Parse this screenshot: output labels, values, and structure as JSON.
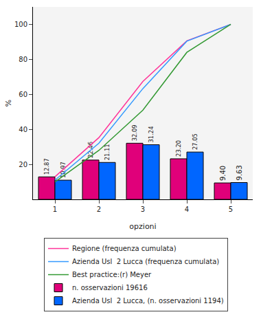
{
  "chart_data": {
    "type": "bar",
    "categories": [
      "1",
      "2",
      "3",
      "4",
      "5"
    ],
    "x_label": "opzioni",
    "y_label": "%",
    "ylim": [
      0,
      110
    ],
    "yticks": [
      20,
      40,
      60,
      80,
      100
    ],
    "grid": false,
    "data_labels": true,
    "legend": "bottom",
    "series": [
      {
        "name": "Regione (frequenza cumulata)",
        "type": "line",
        "color": "#ff3399",
        "values": [
          12.9,
          35.3,
          67.4,
          90.6,
          100
        ]
      },
      {
        "name": "Azienda Usl  2 Lucca (frequenza cumulata)",
        "type": "line",
        "color": "#3399ff",
        "values": [
          11,
          32.1,
          63.3,
          90.4,
          100
        ]
      },
      {
        "name": "Best practice:(r) Meyer",
        "type": "line",
        "color": "#339933",
        "values": [
          10,
          28,
          51,
          84,
          100
        ]
      },
      {
        "name": "n. osservazioni 19616",
        "type": "bar",
        "color": "#e0007a",
        "values": [
          12.87,
          22.46,
          32.09,
          23.2,
          9.4
        ],
        "value_labels": [
          "12.87",
          "22.46",
          "32.09",
          "23.20",
          "9.40"
        ]
      },
      {
        "name": "Azienda Usl  2 Lucca, (n. osservazioni 1194)",
        "type": "bar",
        "color": "#0066ff",
        "values": [
          10.97,
          21.11,
          31.24,
          27.05,
          9.63
        ],
        "value_labels": [
          "10.97",
          "21.11",
          "31.24",
          "27.05",
          "9.63"
        ]
      }
    ]
  }
}
